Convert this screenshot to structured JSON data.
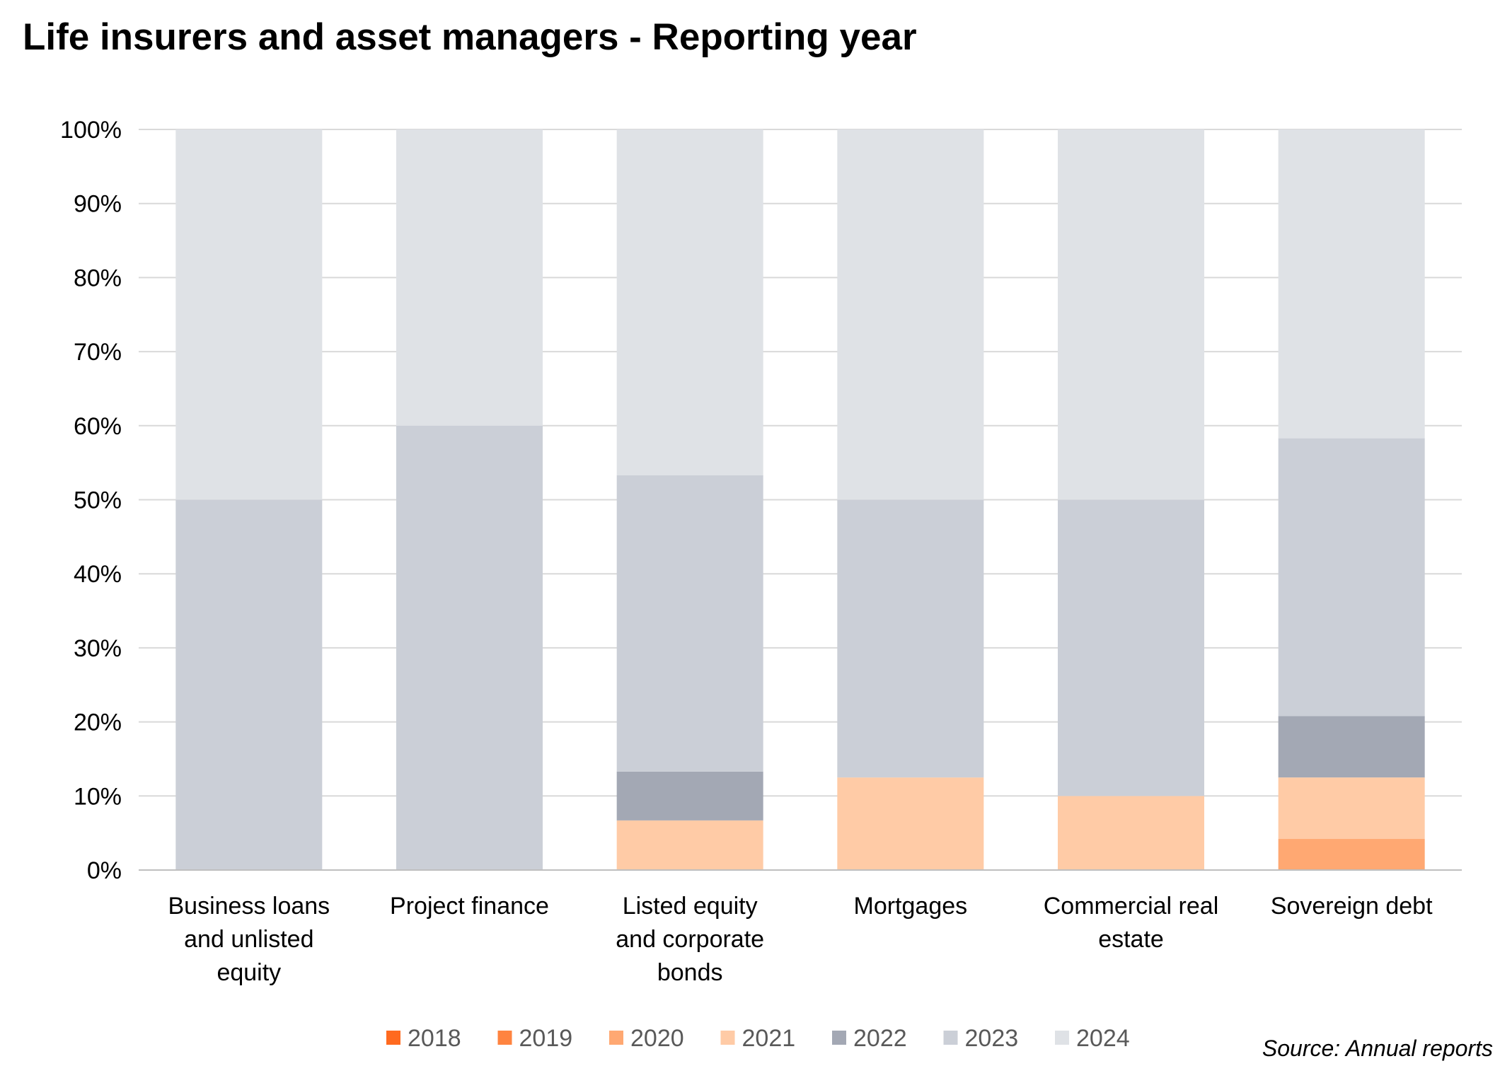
{
  "title": "Life insurers and asset managers - Reporting year",
  "source": "Source: Annual reports",
  "chart_data": {
    "type": "bar",
    "stacked": true,
    "normalized": true,
    "title": "Life insurers and asset managers - Reporting year",
    "xlabel": "",
    "ylabel": "",
    "ylim": [
      0,
      100
    ],
    "y_unit": "%",
    "y_ticks": [
      "0%",
      "10%",
      "20%",
      "30%",
      "40%",
      "50%",
      "60%",
      "70%",
      "80%",
      "90%",
      "100%"
    ],
    "grid": true,
    "legend_position": "bottom",
    "categories": [
      [
        "Business loans",
        "and unlisted",
        "equity"
      ],
      [
        "Project finance"
      ],
      [
        "Listed equity",
        "and corporate",
        "bonds"
      ],
      [
        "Mortgages"
      ],
      [
        "Commercial real",
        "estate"
      ],
      [
        "Sovereign debt"
      ]
    ],
    "series": [
      {
        "name": "2018",
        "color": "#ff6a1f",
        "values": [
          0,
          0,
          0,
          0,
          0,
          0
        ]
      },
      {
        "name": "2019",
        "color": "#ff8440",
        "values": [
          0,
          0,
          0,
          0,
          0,
          0
        ]
      },
      {
        "name": "2020",
        "color": "#ffa872",
        "values": [
          0,
          0,
          0,
          0,
          0,
          4.2
        ]
      },
      {
        "name": "2021",
        "color": "#ffcba6",
        "values": [
          0,
          0,
          6.7,
          12.5,
          10,
          8.3
        ]
      },
      {
        "name": "2022",
        "color": "#a3a8b4",
        "values": [
          0,
          0,
          6.6,
          0,
          0,
          8.3
        ]
      },
      {
        "name": "2023",
        "color": "#cbcfd7",
        "values": [
          50,
          60,
          40,
          37.5,
          40,
          37.5
        ]
      },
      {
        "name": "2024",
        "color": "#dfe2e6",
        "values": [
          50,
          40,
          46.7,
          50,
          50,
          41.7
        ]
      }
    ]
  }
}
